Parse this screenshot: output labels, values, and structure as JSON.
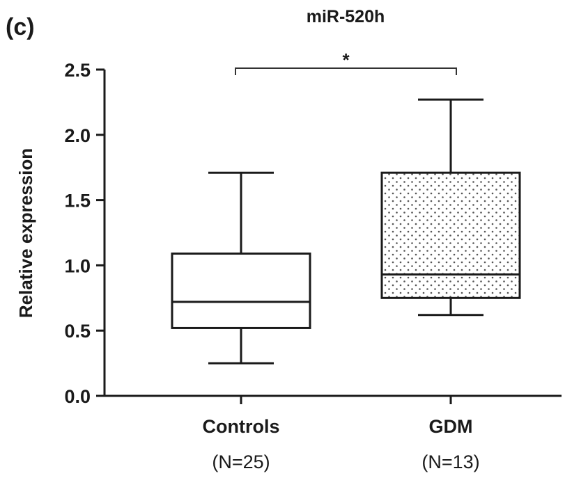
{
  "panel_label": "(c)",
  "chart_data": {
    "type": "box",
    "title": "miR-520h",
    "ylabel": "Relative expression",
    "xlabel": "",
    "ylim": [
      0,
      2.5
    ],
    "yticks": [
      0.0,
      0.5,
      1.0,
      1.5,
      2.0,
      2.5
    ],
    "ytick_labels": [
      "0.0",
      "0.5",
      "1.0",
      "1.5",
      "2.0",
      "2.5"
    ],
    "grid": false,
    "categories": [
      "Controls",
      "GDM"
    ],
    "category_sublabels": [
      "(N=25)",
      "(N=13)"
    ],
    "boxes": [
      {
        "name": "Controls",
        "min": 0.25,
        "q1": 0.52,
        "median": 0.72,
        "q3": 1.09,
        "max": 1.71,
        "fill": "none"
      },
      {
        "name": "GDM",
        "min": 0.62,
        "q1": 0.75,
        "median": 0.93,
        "q3": 1.71,
        "max": 2.27,
        "fill": "dotted"
      }
    ],
    "significance": {
      "from": "Controls",
      "to": "GDM",
      "label": "*"
    }
  },
  "colors": {
    "ink": "#1a1a1a",
    "dots": "#555555",
    "background": "#ffffff"
  }
}
